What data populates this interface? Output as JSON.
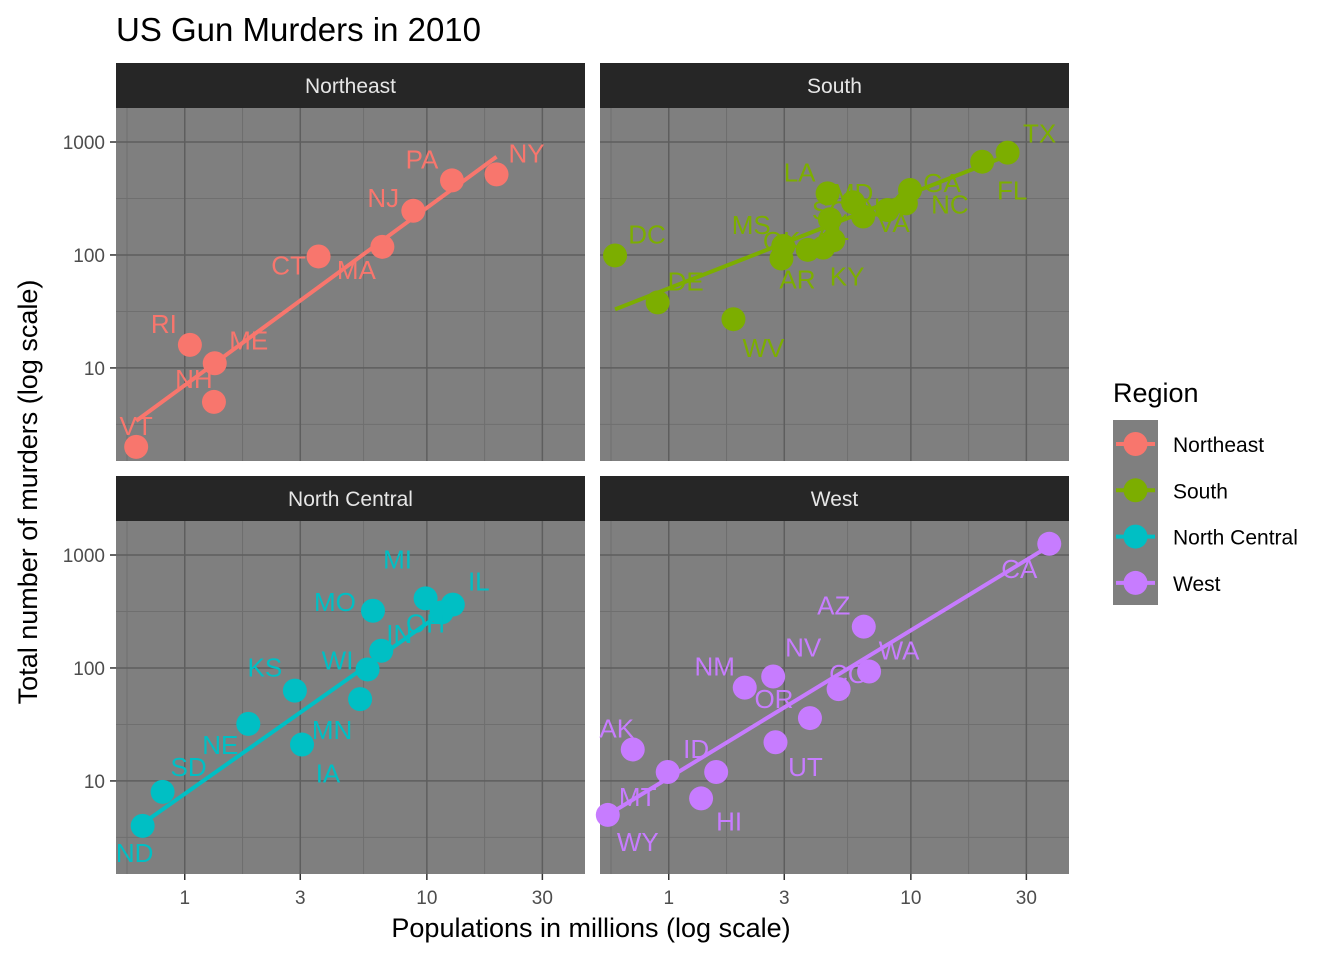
{
  "chart_data": {
    "type": "scatter",
    "title": "US Gun Murders in 2010",
    "xlabel": "Populations in millions (log scale)",
    "ylabel": "Total number of murders (log scale)",
    "xscale": "log10",
    "yscale": "log10",
    "xlim": [
      0.52,
      45
    ],
    "ylim": [
      1.5,
      2000
    ],
    "x_ticks": [
      1,
      3,
      10,
      30
    ],
    "x_tick_labels": [
      "1",
      "3",
      "10",
      "30"
    ],
    "y_ticks": [
      10,
      100,
      1000
    ],
    "y_tick_labels": [
      "10",
      "100",
      "1000"
    ],
    "grid": true,
    "panel_background": "#7f7f7f",
    "strip_background": "#262626",
    "legend": {
      "title": "Region",
      "placement": "right",
      "entries": [
        "Northeast",
        "South",
        "North Central",
        "West"
      ]
    },
    "series": [
      {
        "name": "Northeast",
        "color": "#F8766D",
        "fit": {
          "x": [
            0.63,
            19.4
          ],
          "y": [
            3.4,
            740
          ]
        },
        "points": [
          {
            "label": "VT",
            "x": 0.63,
            "y": 2
          },
          {
            "label": "NH",
            "x": 1.32,
            "y": 5
          },
          {
            "label": "ME",
            "x": 1.33,
            "y": 11
          },
          {
            "label": "RI",
            "x": 1.05,
            "y": 16
          },
          {
            "label": "CT",
            "x": 3.57,
            "y": 97
          },
          {
            "label": "MA",
            "x": 6.55,
            "y": 118
          },
          {
            "label": "NJ",
            "x": 8.79,
            "y": 246
          },
          {
            "label": "PA",
            "x": 12.7,
            "y": 457
          },
          {
            "label": "NY",
            "x": 19.4,
            "y": 517
          }
        ]
      },
      {
        "name": "South",
        "color": "#7CAE00",
        "fit": {
          "x": [
            0.6,
            25.1
          ],
          "y": [
            33,
            760
          ]
        },
        "points": [
          {
            "label": "DC",
            "x": 0.6,
            "y": 99
          },
          {
            "label": "DE",
            "x": 0.9,
            "y": 38
          },
          {
            "label": "WV",
            "x": 1.85,
            "y": 27
          },
          {
            "label": "AR",
            "x": 2.92,
            "y": 93
          },
          {
            "label": "MS",
            "x": 2.97,
            "y": 120
          },
          {
            "label": "OK",
            "x": 3.75,
            "y": 111
          },
          {
            "label": "KY",
            "x": 4.34,
            "y": 116
          },
          {
            "label": "LA",
            "x": 4.53,
            "y": 351
          },
          {
            "label": "SC",
            "x": 4.63,
            "y": 207
          },
          {
            "label": "AL",
            "x": 4.78,
            "y": 135
          },
          {
            "label": "MD",
            "x": 5.77,
            "y": 293
          },
          {
            "label": "TN",
            "x": 6.35,
            "y": 219
          },
          {
            "label": "VA",
            "x": 8.0,
            "y": 250
          },
          {
            "label": "NC",
            "x": 9.54,
            "y": 286
          },
          {
            "label": "GA",
            "x": 9.92,
            "y": 376
          },
          {
            "label": "FL",
            "x": 19.7,
            "y": 669
          },
          {
            "label": "TX",
            "x": 25.1,
            "y": 805
          }
        ]
      },
      {
        "name": "North Central",
        "color": "#00BFC4",
        "fit": {
          "x": [
            0.67,
            12.8
          ],
          "y": [
            4.2,
            360
          ]
        },
        "points": [
          {
            "label": "ND",
            "x": 0.67,
            "y": 4
          },
          {
            "label": "SD",
            "x": 0.81,
            "y": 8
          },
          {
            "label": "NE",
            "x": 1.83,
            "y": 32
          },
          {
            "label": "KS",
            "x": 2.85,
            "y": 63
          },
          {
            "label": "IA",
            "x": 3.05,
            "y": 21
          },
          {
            "label": "MN",
            "x": 5.3,
            "y": 53
          },
          {
            "label": "WI",
            "x": 5.69,
            "y": 97
          },
          {
            "label": "MO",
            "x": 5.99,
            "y": 321
          },
          {
            "label": "IN",
            "x": 6.48,
            "y": 142
          },
          {
            "label": "MI",
            "x": 9.88,
            "y": 413
          },
          {
            "label": "OH",
            "x": 11.5,
            "y": 310
          },
          {
            "label": "IL",
            "x": 12.8,
            "y": 364
          }
        ]
      },
      {
        "name": "West",
        "color": "#C77CFF",
        "fit": {
          "x": [
            0.56,
            37.3
          ],
          "y": [
            5.0,
            1200
          ]
        },
        "points": [
          {
            "label": "WY",
            "x": 0.56,
            "y": 5
          },
          {
            "label": "AK",
            "x": 0.71,
            "y": 19
          },
          {
            "label": "MT",
            "x": 0.99,
            "y": 12
          },
          {
            "label": "HI",
            "x": 1.36,
            "y": 7
          },
          {
            "label": "ID",
            "x": 1.57,
            "y": 12
          },
          {
            "label": "NM",
            "x": 2.06,
            "y": 67
          },
          {
            "label": "NV",
            "x": 2.7,
            "y": 84
          },
          {
            "label": "UT",
            "x": 2.76,
            "y": 22
          },
          {
            "label": "OR",
            "x": 3.83,
            "y": 36
          },
          {
            "label": "CO",
            "x": 5.03,
            "y": 65
          },
          {
            "label": "AZ",
            "x": 6.39,
            "y": 232
          },
          {
            "label": "WA",
            "x": 6.72,
            "y": 93
          },
          {
            "label": "CA",
            "x": 37.3,
            "y": 1257
          }
        ]
      }
    ]
  }
}
